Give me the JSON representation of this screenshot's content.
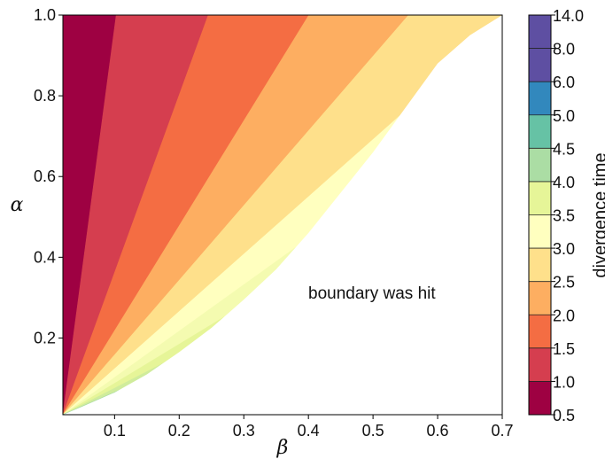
{
  "chart_data": {
    "type": "contourf",
    "xlabel": "β",
    "ylabel": "α",
    "xlim": [
      0.02,
      0.7
    ],
    "ylim": [
      0.01,
      1.0
    ],
    "x_ticks": [
      "0.1",
      "0.2",
      "0.3",
      "0.4",
      "0.5",
      "0.6",
      "0.7"
    ],
    "x_tick_values": [
      0.1,
      0.2,
      0.3,
      0.4,
      0.5,
      0.6,
      0.7
    ],
    "y_ticks": [
      "0.2",
      "0.4",
      "0.6",
      "0.8",
      "1.0"
    ],
    "y_tick_values": [
      0.2,
      0.4,
      0.6,
      0.8,
      1.0
    ],
    "colorbar": {
      "label": "divergence time",
      "levels": [
        "0.5",
        "1.0",
        "1.5",
        "2.0",
        "2.5",
        "3.0",
        "3.5",
        "4.0",
        "4.5",
        "5.0",
        "6.0",
        "8.0",
        "14.0"
      ],
      "colors": [
        "#9e0142",
        "#d53e4f",
        "#f46d43",
        "#fdae61",
        "#fee08b",
        "#ffffbf",
        "#e6f598",
        "#abdda4",
        "#66c2a5",
        "#3288bd",
        "#5e4fa2",
        "#5e4fa2"
      ]
    },
    "band_boundaries_slope_alpha_per_beta": [
      12.0,
      4.4,
      2.6,
      1.85,
      1.42,
      1.15,
      0.97,
      0.82,
      0.7,
      0.6,
      0.52
    ],
    "band_colors": [
      "#9e0142",
      "#d53e4f",
      "#f46d43",
      "#fdae61",
      "#fee08b",
      "#ffffbf",
      "#f4fbb0",
      "#e6f598",
      "#d0ec9c",
      "#abdda4",
      "#8fd2a4",
      "#66c2a5",
      "#3288bd",
      "#5e4fa2"
    ],
    "boundary_curve": {
      "beta": [
        0.02,
        0.05,
        0.1,
        0.15,
        0.2,
        0.25,
        0.3,
        0.35,
        0.4,
        0.45,
        0.5,
        0.55,
        0.6,
        0.65,
        0.7
      ],
      "alpha": [
        0.01,
        0.03,
        0.065,
        0.11,
        0.165,
        0.225,
        0.295,
        0.37,
        0.46,
        0.56,
        0.66,
        0.77,
        0.88,
        0.95,
        1.0
      ]
    },
    "annotation": "boundary was hit"
  }
}
